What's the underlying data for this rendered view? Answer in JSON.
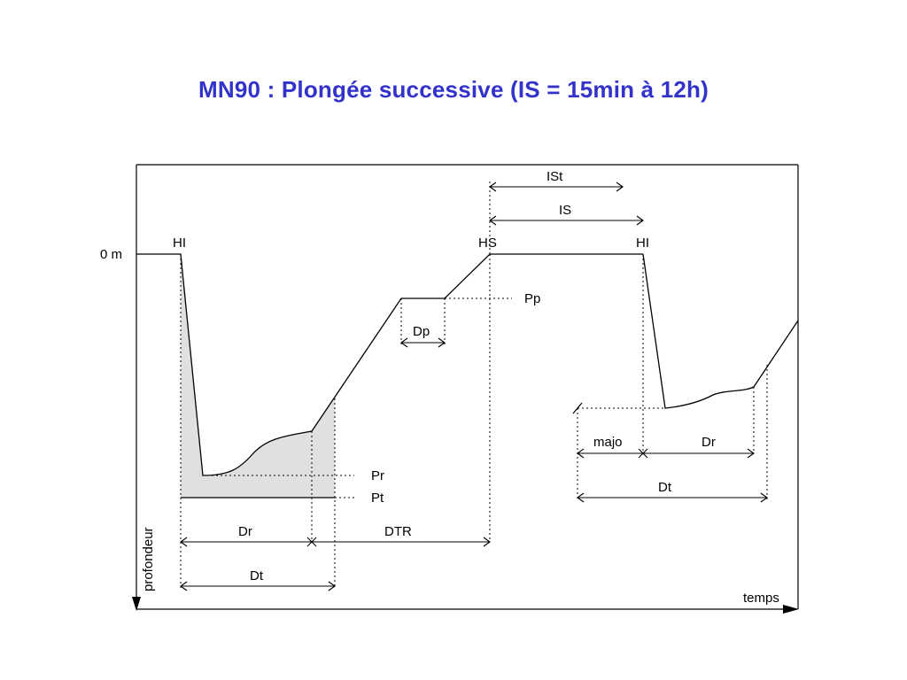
{
  "title": "MN90 : Plongée successive (IS = 15min à 12h)",
  "colors": {
    "title": "#3333cc",
    "stroke": "#000000",
    "shaded_area": "#e0e0e0"
  },
  "labels": {
    "surface": "0 m",
    "hi_first": "HI",
    "hs": "HS",
    "hi_second": "HI",
    "pp": "Pp",
    "pr": "Pr",
    "pt": "Pt",
    "dp": "Dp",
    "ist": "ISt",
    "is": "IS",
    "dr_first": "Dr",
    "dtr": "DTR",
    "dt_first": "Dt",
    "majo": "majo",
    "dr_second": "Dr",
    "dt_second": "Dt",
    "y_axis": "profondeur",
    "x_axis": "temps"
  }
}
